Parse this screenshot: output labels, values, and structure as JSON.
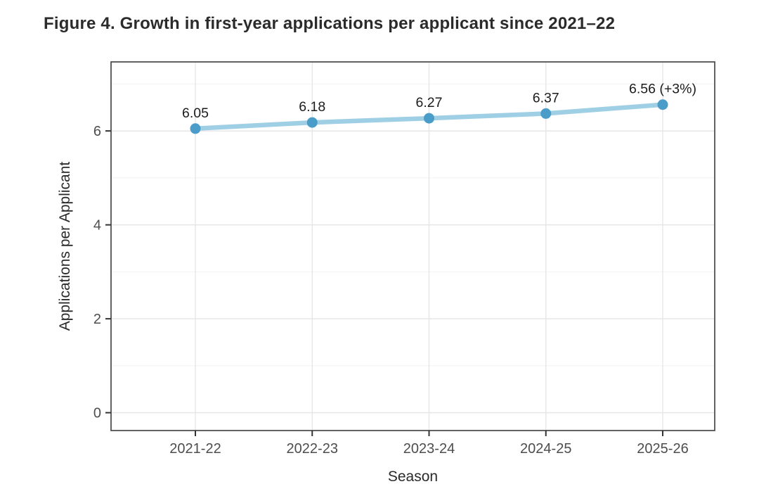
{
  "title": "Figure 4. Growth in first-year applications per applicant since 2021–22",
  "chart_data": {
    "type": "line",
    "categories": [
      "2021-22",
      "2022-23",
      "2023-24",
      "2024-25",
      "2025-26"
    ],
    "series": [
      {
        "name": "Applications per Applicant",
        "values": [
          6.05,
          6.18,
          6.27,
          6.37,
          6.56
        ]
      }
    ],
    "point_labels": [
      "6.05",
      "6.18",
      "6.27",
      "6.37",
      "6.56 (+3%)"
    ],
    "title": "Figure 4. Growth in first-year applications per applicant since 2021–22",
    "xlabel": "Season",
    "ylabel": "Applications per Applicant",
    "ylim": [
      -0.38,
      7.47
    ],
    "yticks": [
      0,
      2,
      4,
      6
    ],
    "minor_yticks": [
      1,
      3,
      5,
      7
    ],
    "grid": "major-and-minor",
    "legend": "none",
    "annotation_last_point_growth": "+3%",
    "colors": {
      "line": "#9fcfe5",
      "point": "#4a9cc9",
      "panel_border": "#484848",
      "panel_background": "#ffffff",
      "grid_major": "#e6e6e6",
      "grid_minor": "#f2f2f2",
      "tick_mark": "#333333",
      "tick_label": "#4d4d4d",
      "axis_title": "#2a2a2a",
      "data_label": "#1c1c1c",
      "figure_title": "#2b2b2b",
      "background": "#ffffff"
    }
  }
}
